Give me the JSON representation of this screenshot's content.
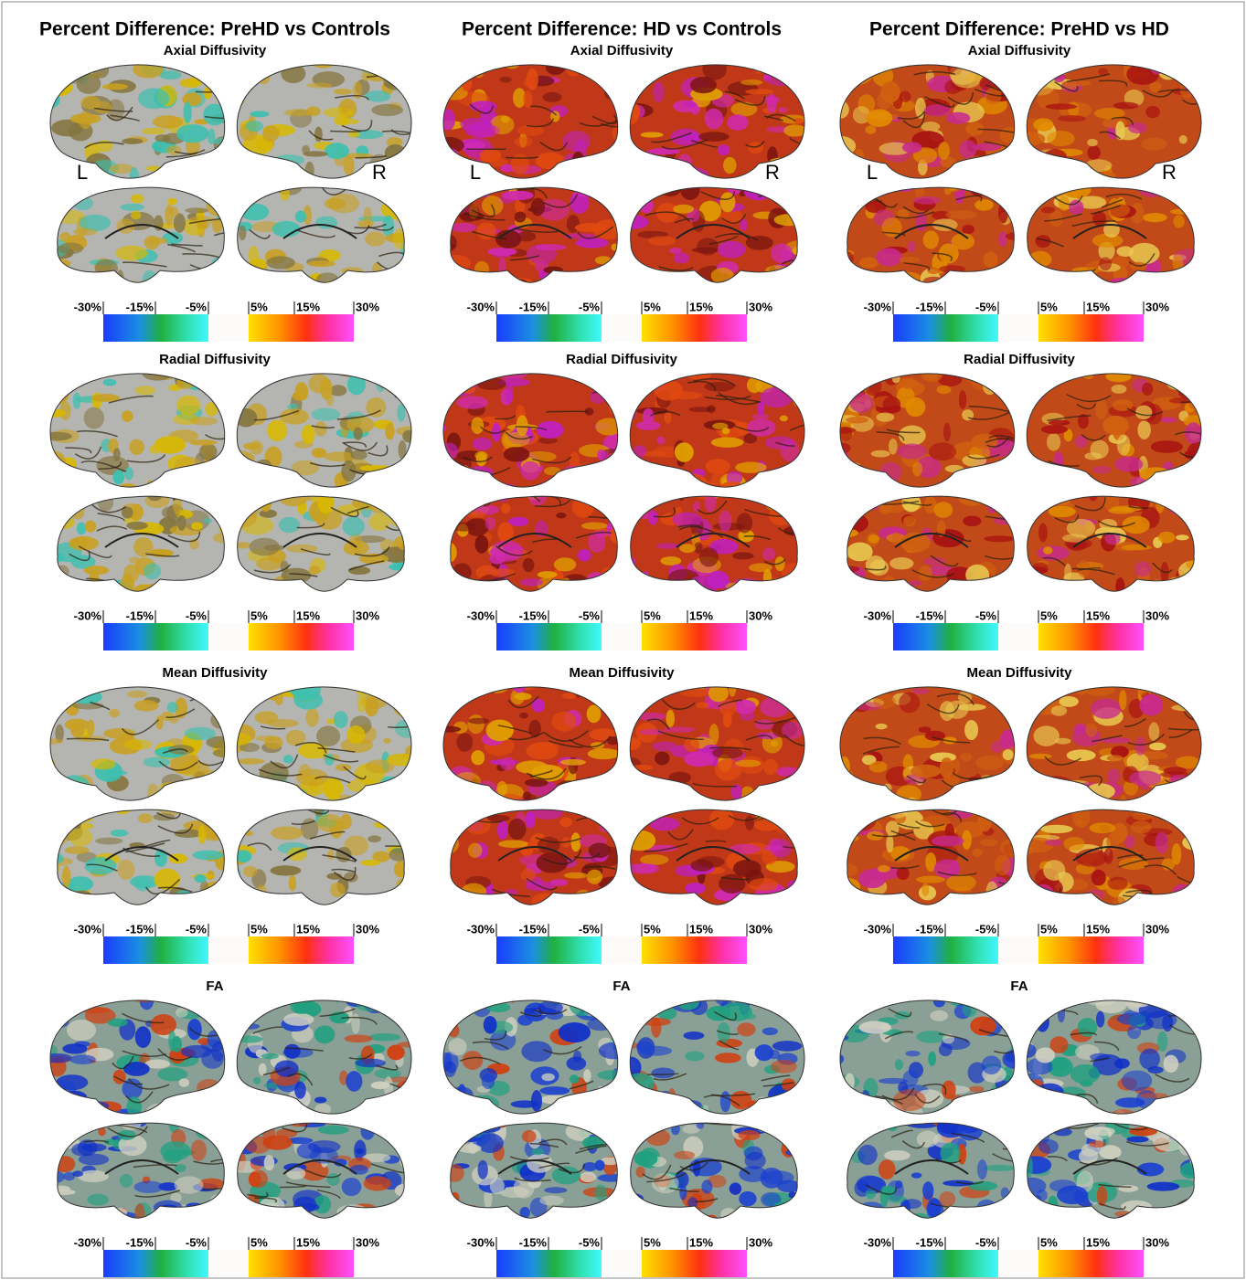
{
  "columns": [
    {
      "title": "Percent Difference: PreHD vs Controls",
      "hemisphere_labels": [
        "L",
        "R"
      ],
      "panels": [
        {
          "subtitle": "Axial Diffusivity",
          "colorbar_labels": [
            "-30%",
            "-15%",
            "-5%",
            "5%",
            "15%",
            "30%"
          ]
        },
        {
          "subtitle": "Radial Diffusivity",
          "colorbar_labels": [
            "-30%",
            "-15%",
            "-5%",
            "5%",
            "15%",
            "30%"
          ]
        },
        {
          "subtitle": "Mean Diffusivity",
          "colorbar_labels": [
            "-30%",
            "-15%",
            "-5%",
            "5%",
            "15%",
            "30%"
          ]
        },
        {
          "subtitle": "FA",
          "colorbar_labels": [
            "-30%",
            "-15%",
            "-5%",
            "5%",
            "15%",
            "30%"
          ]
        }
      ]
    },
    {
      "title": "Percent Difference: HD vs Controls",
      "hemisphere_labels": [
        "L",
        "R"
      ],
      "panels": [
        {
          "subtitle": "Axial Diffusivity",
          "colorbar_labels": [
            "-30%",
            "-15%",
            "-5%",
            "5%",
            "15%",
            "30%"
          ]
        },
        {
          "subtitle": "Radial Diffusivity",
          "colorbar_labels": [
            "-30%",
            "-15%",
            "-5%",
            "5%",
            "15%",
            "30%"
          ]
        },
        {
          "subtitle": "Mean Diffusivity",
          "colorbar_labels": [
            "-30%",
            "-15%",
            "-5%",
            "5%",
            "15%",
            "30%"
          ]
        },
        {
          "subtitle": "FA",
          "colorbar_labels": [
            "-30%",
            "-15%",
            "-5%",
            "5%",
            "15%",
            "30%"
          ]
        }
      ]
    },
    {
      "title": "Percent Difference: PreHD vs HD",
      "hemisphere_labels": [
        "L",
        "R"
      ],
      "panels": [
        {
          "subtitle": "Axial Diffusivity",
          "colorbar_labels": [
            "-30%",
            "-15%",
            "-5%",
            "5%",
            "15%",
            "30%"
          ]
        },
        {
          "subtitle": "Radial Diffusivity",
          "colorbar_labels": [
            "-30%",
            "-15%",
            "-5%",
            "5%",
            "15%",
            "30%"
          ]
        },
        {
          "subtitle": "Mean Diffusivity",
          "colorbar_labels": [
            "-30%",
            "-15%",
            "-5%",
            "5%",
            "15%",
            "30%"
          ]
        },
        {
          "subtitle": "FA",
          "colorbar_labels": [
            "-30%",
            "-15%",
            "-5%",
            "5%",
            "15%",
            "30%"
          ]
        }
      ]
    }
  ]
}
